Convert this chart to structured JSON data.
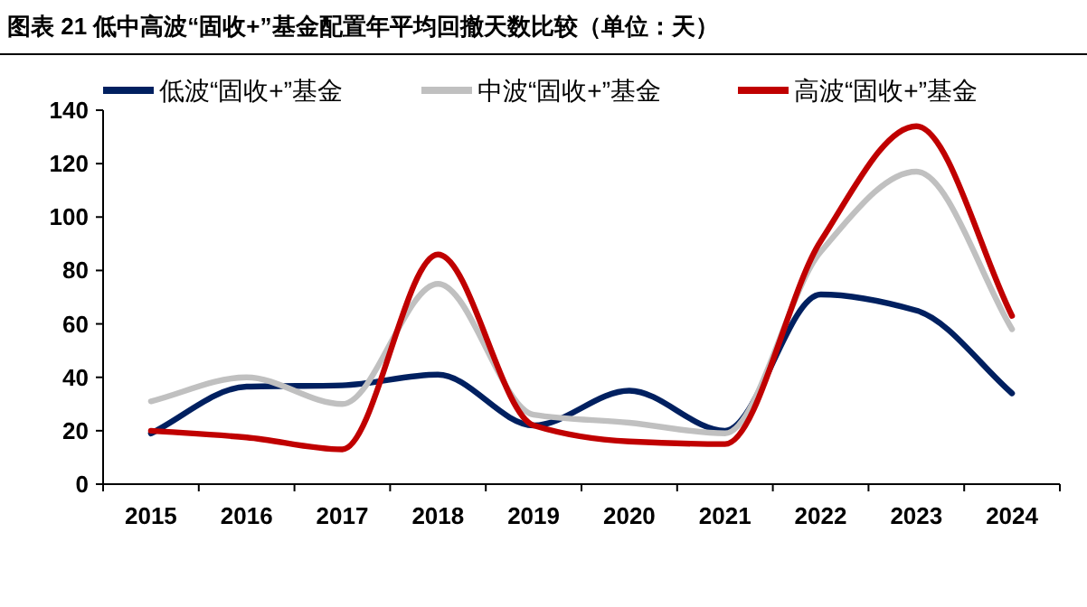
{
  "chart_data": {
    "type": "line",
    "title": "图表 21 低中高波“固收+”基金配置年平均回撤天数比较（单位：天）",
    "categories": [
      "2015",
      "2016",
      "2017",
      "2018",
      "2019",
      "2020",
      "2021",
      "2022",
      "2023",
      "2024"
    ],
    "series": [
      {
        "name": "低波“固收+”基金",
        "color": "#002060",
        "values": [
          19,
          36.5,
          37,
          41,
          22,
          35,
          20,
          71,
          65,
          34
        ]
      },
      {
        "name": "中波“固收+”基金",
        "color": "#c0c0c0",
        "values": [
          31,
          40,
          30,
          75,
          26,
          23,
          19,
          87,
          117,
          58
        ]
      },
      {
        "name": "高波“固收+”基金",
        "color": "#c00000",
        "values": [
          20,
          17.5,
          13,
          86,
          22,
          16,
          15,
          91,
          134,
          63
        ]
      }
    ],
    "ylim": [
      0,
      140
    ],
    "yticks": [
      0,
      20,
      40,
      60,
      80,
      100,
      120,
      140
    ],
    "legend": "top",
    "grid": false,
    "marker": "none",
    "line_style": "solid"
  }
}
